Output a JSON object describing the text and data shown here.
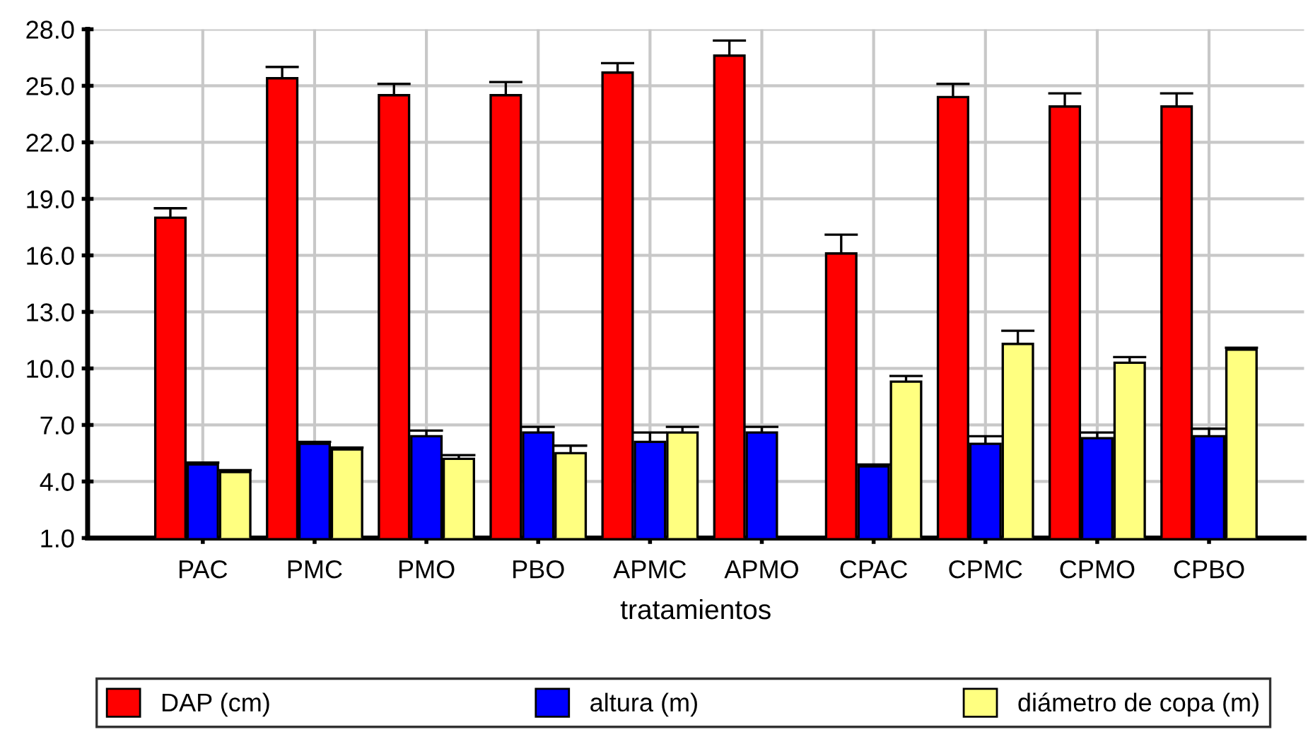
{
  "chart_data": {
    "type": "bar",
    "xlabel": "tratamientos",
    "categories": [
      "PAC",
      "PMC",
      "PMO",
      "PBO",
      "APMC",
      "APMO",
      "CPAC",
      "CPMC",
      "CPMO",
      "CPBO"
    ],
    "series": [
      {
        "name": "DAP (cm)",
        "color": "#ff0000",
        "values": [
          18.0,
          25.4,
          24.5,
          24.5,
          25.7,
          26.6,
          16.1,
          24.4,
          23.9,
          23.9
        ],
        "errors": [
          [
            18.0,
            18.5
          ],
          [
            25.4,
            26.0
          ],
          [
            24.5,
            25.1
          ],
          [
            24.5,
            25.2
          ],
          [
            25.7,
            26.2
          ],
          [
            26.6,
            27.4
          ],
          [
            16.1,
            17.1
          ],
          [
            24.4,
            25.1
          ],
          [
            23.9,
            24.6
          ],
          [
            23.9,
            24.6
          ]
        ]
      },
      {
        "name": "altura (m)",
        "color": "#0000ff",
        "values": [
          4.9,
          6.0,
          6.4,
          6.6,
          6.1,
          6.6,
          4.8,
          6.0,
          6.3,
          6.4
        ],
        "errors": [
          [
            4.9,
            5.0
          ],
          [
            6.0,
            6.1
          ],
          [
            6.4,
            6.7
          ],
          [
            6.6,
            6.9
          ],
          [
            6.1,
            6.6
          ],
          [
            6.6,
            6.9
          ],
          [
            4.8,
            4.9
          ],
          [
            6.0,
            6.4
          ],
          [
            6.3,
            6.6
          ],
          [
            6.4,
            6.8
          ]
        ]
      },
      {
        "name": "diámetro de copa (m)",
        "color": "#ffff80",
        "values": [
          4.5,
          5.7,
          5.2,
          5.5,
          6.6,
          null,
          9.3,
          11.3,
          10.3,
          11.0
        ],
        "errors": [
          [
            4.5,
            4.6
          ],
          [
            5.7,
            5.8
          ],
          [
            5.2,
            5.4
          ],
          [
            5.5,
            5.9
          ],
          [
            6.6,
            6.9
          ],
          null,
          [
            9.3,
            9.6
          ],
          [
            11.3,
            12.0
          ],
          [
            10.3,
            10.6
          ],
          [
            11.0,
            11.1
          ]
        ]
      }
    ],
    "ylim": [
      1.0,
      28.0
    ],
    "yticks": [
      {
        "value": 1,
        "label": "1.0"
      },
      {
        "value": 4,
        "label": "4.0"
      },
      {
        "value": 7,
        "label": "7.0"
      },
      {
        "value": 10,
        "label": "10.0"
      },
      {
        "value": 13,
        "label": "13.0"
      },
      {
        "value": 16,
        "label": "16.0"
      },
      {
        "value": 19,
        "label": "19.0"
      },
      {
        "value": 22,
        "label": "22.0"
      },
      {
        "value": 25,
        "label": "25.0"
      },
      {
        "value": 28,
        "label": "28.0"
      }
    ],
    "grid": true,
    "legend": "bottom"
  }
}
